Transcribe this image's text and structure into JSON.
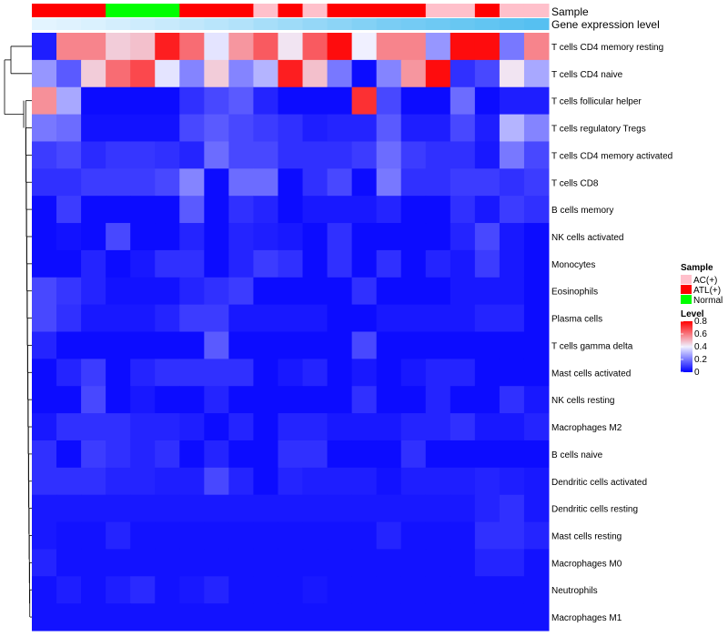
{
  "chart_data": {
    "type": "heatmap",
    "title": "",
    "annotation_labels": {
      "sample": "Sample",
      "gene_expression": "Gene expression level"
    },
    "legend": {
      "sample_title": "Sample",
      "sample_entries": [
        {
          "label": "AC(+)",
          "color": "#ffc0cb"
        },
        {
          "label": "ATL(+)",
          "color": "#ff0000"
        },
        {
          "label": "Normal",
          "color": "#00ff00"
        }
      ],
      "level_title": "Level",
      "level_ticks": [
        "0.8",
        "0.6",
        "0.4",
        "0.2",
        "0"
      ],
      "level_range": [
        0,
        0.8
      ],
      "position": "right"
    },
    "sample_groups": [
      "ATL(+)",
      "ATL(+)",
      "ATL(+)",
      "Normal",
      "Normal",
      "Normal",
      "ATL(+)",
      "ATL(+)",
      "ATL(+)",
      "AC(+)",
      "ATL(+)",
      "AC(+)",
      "ATL(+)",
      "ATL(+)",
      "ATL(+)",
      "ATL(+)",
      "AC(+)",
      "AC(+)",
      "ATL(+)",
      "AC(+)",
      "AC(+)"
    ],
    "gene_expression_level": [
      0.02,
      0.05,
      0.08,
      0.12,
      0.16,
      0.2,
      0.25,
      0.3,
      0.35,
      0.42,
      0.48,
      0.54,
      0.6,
      0.66,
      0.72,
      0.76,
      0.8,
      0.84,
      0.88,
      0.92,
      0.96
    ],
    "rows": [
      "T cells CD4 memory resting",
      "T cells CD4 naive",
      "T cells follicular helper",
      "T cells regulatory  Tregs",
      "T cells CD4 memory activated",
      "T cells CD8",
      "B cells memory",
      "NK cells activated",
      "Monocytes",
      "Eosinophils",
      "Plasma cells",
      "T cells gamma delta",
      "Mast cells activated",
      "NK cells resting",
      "Macrophages M2",
      "B cells naive",
      "Dendritic cells activated",
      "Dendritic cells resting",
      "Mast cells resting",
      "Macrophages M0",
      "Neutrophils",
      "Macrophages M1"
    ],
    "values": [
      [
        0.05,
        0.58,
        0.58,
        0.46,
        0.48,
        0.75,
        0.62,
        0.38,
        0.55,
        0.65,
        0.42,
        0.65,
        0.78,
        0.4,
        0.58,
        0.58,
        0.25,
        0.78,
        0.78,
        0.2,
        0.58
      ],
      [
        0.25,
        0.15,
        0.46,
        0.62,
        0.68,
        0.38,
        0.22,
        0.46,
        0.22,
        0.3,
        0.75,
        0.48,
        0.2,
        0.02,
        0.22,
        0.55,
        0.78,
        0.08,
        0.12,
        0.42,
        0.28
      ],
      [
        0.56,
        0.28,
        0.02,
        0.02,
        0.02,
        0.02,
        0.08,
        0.12,
        0.15,
        0.06,
        0.02,
        0.02,
        0.02,
        0.72,
        0.12,
        0.02,
        0.02,
        0.18,
        0.02,
        0.05,
        0.05
      ],
      [
        0.2,
        0.18,
        0.03,
        0.03,
        0.03,
        0.03,
        0.12,
        0.15,
        0.12,
        0.1,
        0.08,
        0.05,
        0.06,
        0.06,
        0.15,
        0.05,
        0.05,
        0.12,
        0.05,
        0.3,
        0.22
      ],
      [
        0.1,
        0.12,
        0.07,
        0.09,
        0.09,
        0.08,
        0.06,
        0.18,
        0.12,
        0.12,
        0.08,
        0.08,
        0.08,
        0.1,
        0.18,
        0.1,
        0.08,
        0.08,
        0.04,
        0.2,
        0.12
      ],
      [
        0.08,
        0.08,
        0.1,
        0.1,
        0.1,
        0.12,
        0.22,
        0.02,
        0.18,
        0.18,
        0.02,
        0.08,
        0.12,
        0.02,
        0.2,
        0.08,
        0.08,
        0.1,
        0.1,
        0.08,
        0.1
      ],
      [
        0.02,
        0.1,
        0.02,
        0.02,
        0.02,
        0.02,
        0.15,
        0.02,
        0.08,
        0.06,
        0.02,
        0.04,
        0.04,
        0.04,
        0.06,
        0.02,
        0.02,
        0.08,
        0.04,
        0.1,
        0.08
      ],
      [
        0.02,
        0.03,
        0.02,
        0.12,
        0.02,
        0.02,
        0.06,
        0.02,
        0.06,
        0.05,
        0.04,
        0.02,
        0.08,
        0.02,
        0.02,
        0.02,
        0.02,
        0.06,
        0.12,
        0.04,
        0.02
      ],
      [
        0.02,
        0.02,
        0.06,
        0.02,
        0.04,
        0.08,
        0.08,
        0.02,
        0.06,
        0.1,
        0.08,
        0.02,
        0.08,
        0.02,
        0.08,
        0.02,
        0.06,
        0.04,
        0.1,
        0.04,
        0.02
      ],
      [
        0.12,
        0.09,
        0.06,
        0.03,
        0.03,
        0.03,
        0.06,
        0.08,
        0.1,
        0.02,
        0.02,
        0.02,
        0.02,
        0.08,
        0.02,
        0.02,
        0.02,
        0.04,
        0.04,
        0.04,
        0.02
      ],
      [
        0.12,
        0.08,
        0.04,
        0.04,
        0.04,
        0.06,
        0.1,
        0.1,
        0.04,
        0.04,
        0.04,
        0.04,
        0.02,
        0.02,
        0.04,
        0.04,
        0.04,
        0.04,
        0.06,
        0.06,
        0.02
      ],
      [
        0.06,
        0.02,
        0.02,
        0.02,
        0.02,
        0.02,
        0.02,
        0.15,
        0.02,
        0.02,
        0.02,
        0.02,
        0.02,
        0.12,
        0.02,
        0.02,
        0.02,
        0.02,
        0.02,
        0.02,
        0.02
      ],
      [
        0.02,
        0.06,
        0.1,
        0.02,
        0.06,
        0.08,
        0.08,
        0.08,
        0.08,
        0.02,
        0.04,
        0.06,
        0.02,
        0.04,
        0.02,
        0.04,
        0.06,
        0.06,
        0.02,
        0.02,
        0.02
      ],
      [
        0.02,
        0.02,
        0.12,
        0.02,
        0.04,
        0.02,
        0.02,
        0.06,
        0.02,
        0.02,
        0.02,
        0.02,
        0.02,
        0.08,
        0.02,
        0.02,
        0.06,
        0.02,
        0.02,
        0.08,
        0.04
      ],
      [
        0.04,
        0.08,
        0.08,
        0.08,
        0.06,
        0.06,
        0.05,
        0.02,
        0.06,
        0.02,
        0.06,
        0.06,
        0.04,
        0.04,
        0.04,
        0.06,
        0.06,
        0.08,
        0.04,
        0.04,
        0.06
      ],
      [
        0.08,
        0.02,
        0.1,
        0.08,
        0.06,
        0.08,
        0.02,
        0.06,
        0.02,
        0.02,
        0.08,
        0.08,
        0.02,
        0.02,
        0.02,
        0.08,
        0.02,
        0.02,
        0.02,
        0.02,
        0.02
      ],
      [
        0.08,
        0.08,
        0.08,
        0.06,
        0.06,
        0.05,
        0.05,
        0.12,
        0.06,
        0.02,
        0.06,
        0.05,
        0.05,
        0.05,
        0.03,
        0.05,
        0.05,
        0.05,
        0.06,
        0.05,
        0.04
      ],
      [
        0.04,
        0.04,
        0.04,
        0.04,
        0.04,
        0.04,
        0.04,
        0.04,
        0.04,
        0.04,
        0.04,
        0.04,
        0.04,
        0.04,
        0.04,
        0.04,
        0.04,
        0.04,
        0.06,
        0.08,
        0.04
      ],
      [
        0.04,
        0.03,
        0.03,
        0.06,
        0.03,
        0.03,
        0.03,
        0.03,
        0.03,
        0.03,
        0.03,
        0.03,
        0.03,
        0.03,
        0.06,
        0.03,
        0.03,
        0.03,
        0.08,
        0.08,
        0.06
      ],
      [
        0.06,
        0.03,
        0.03,
        0.03,
        0.03,
        0.03,
        0.03,
        0.03,
        0.03,
        0.03,
        0.03,
        0.03,
        0.03,
        0.03,
        0.03,
        0.03,
        0.03,
        0.03,
        0.06,
        0.06,
        0.03
      ],
      [
        0.03,
        0.05,
        0.03,
        0.05,
        0.07,
        0.03,
        0.04,
        0.06,
        0.03,
        0.03,
        0.03,
        0.04,
        0.03,
        0.03,
        0.03,
        0.03,
        0.03,
        0.03,
        0.03,
        0.03,
        0.03
      ],
      [
        0.03,
        0.03,
        0.03,
        0.03,
        0.03,
        0.03,
        0.03,
        0.03,
        0.03,
        0.03,
        0.03,
        0.03,
        0.03,
        0.03,
        0.03,
        0.03,
        0.03,
        0.03,
        0.03,
        0.03,
        0.03
      ]
    ]
  }
}
